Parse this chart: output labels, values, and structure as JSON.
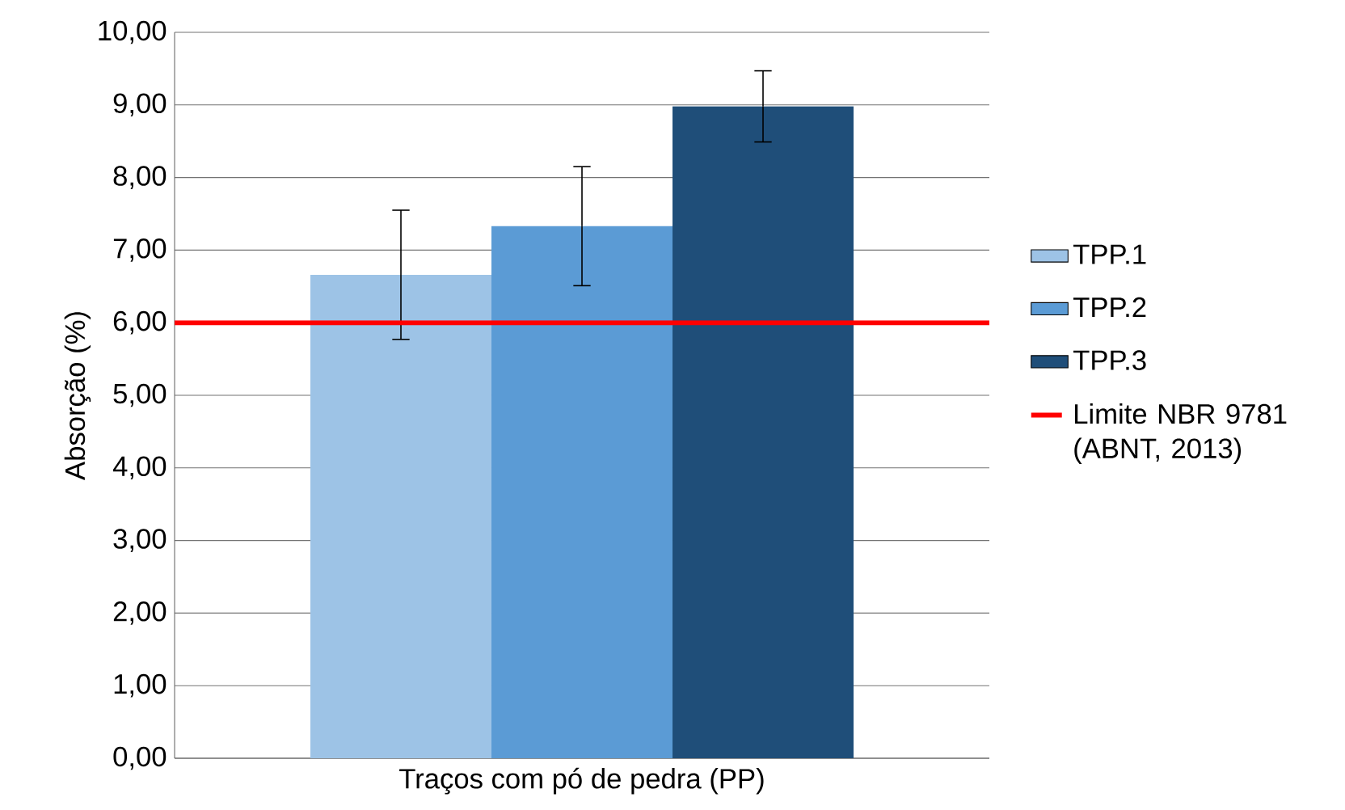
{
  "chart_data": {
    "type": "bar",
    "xlabel": "Traços com pó de pedra (PP)",
    "ylabel": "Absorção (%)",
    "categories": [
      null
    ],
    "series": [
      {
        "name": "TPP.1",
        "color": "#9dc3e6",
        "values": [
          6.66
        ],
        "errors": [
          0.89
        ]
      },
      {
        "name": "TPP.2",
        "color": "#5b9bd5",
        "values": [
          7.33
        ],
        "errors": [
          0.82
        ]
      },
      {
        "name": "TPP.3",
        "color": "#1f4e79",
        "values": [
          8.98
        ],
        "errors": [
          0.49
        ]
      }
    ],
    "ylim": [
      0,
      10
    ],
    "yticks": [
      {
        "value": 0,
        "label": "0,00"
      },
      {
        "value": 1,
        "label": "1,00"
      },
      {
        "value": 2,
        "label": "2,00"
      },
      {
        "value": 3,
        "label": "3,00"
      },
      {
        "value": 4,
        "label": "4,00"
      },
      {
        "value": 5,
        "label": "5,00"
      },
      {
        "value": 6,
        "label": "6,00"
      },
      {
        "value": 7,
        "label": "7,00"
      },
      {
        "value": 8,
        "label": "8,00"
      },
      {
        "value": 9,
        "label": "9,00"
      },
      {
        "value": 10,
        "label": "10,00"
      }
    ],
    "ref_lines": [
      {
        "axis": "y",
        "value": 6,
        "label": "Limite NBR 9781 (ABNT, 2013)",
        "color": "#ff0000"
      }
    ],
    "grid": "y",
    "legend": "right"
  }
}
